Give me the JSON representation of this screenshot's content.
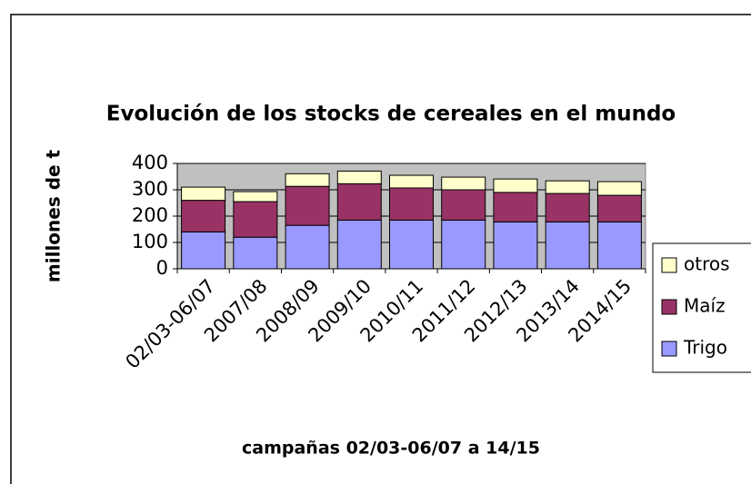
{
  "chart_data": {
    "type": "stacked_bar",
    "title": "Evolución de los stocks de cereales en el mundo",
    "y_label": "millones de t",
    "x_label": "campañas 02/03-06/07 a 14/15",
    "categories": [
      "02/03-06/07",
      "2007/08",
      "2008/09",
      "2009/10",
      "2010/11",
      "2011/12",
      "2012/13",
      "2013/14",
      "2014/15"
    ],
    "series": [
      {
        "name": "Trigo",
        "color": "#9999ff",
        "values": [
          140,
          120,
          165,
          185,
          185,
          185,
          178,
          178,
          178
        ]
      },
      {
        "name": "Maíz",
        "color": "#993366",
        "values": [
          120,
          135,
          148,
          138,
          122,
          115,
          112,
          108,
          101
        ]
      },
      {
        "name": "otros",
        "color": "#ffffcc",
        "values": [
          50,
          38,
          48,
          48,
          48,
          48,
          51,
          48,
          52
        ]
      }
    ],
    "ylim": [
      0,
      400
    ],
    "yticks": [
      0,
      100,
      200,
      300,
      400
    ],
    "grid": true,
    "legend": "right"
  }
}
